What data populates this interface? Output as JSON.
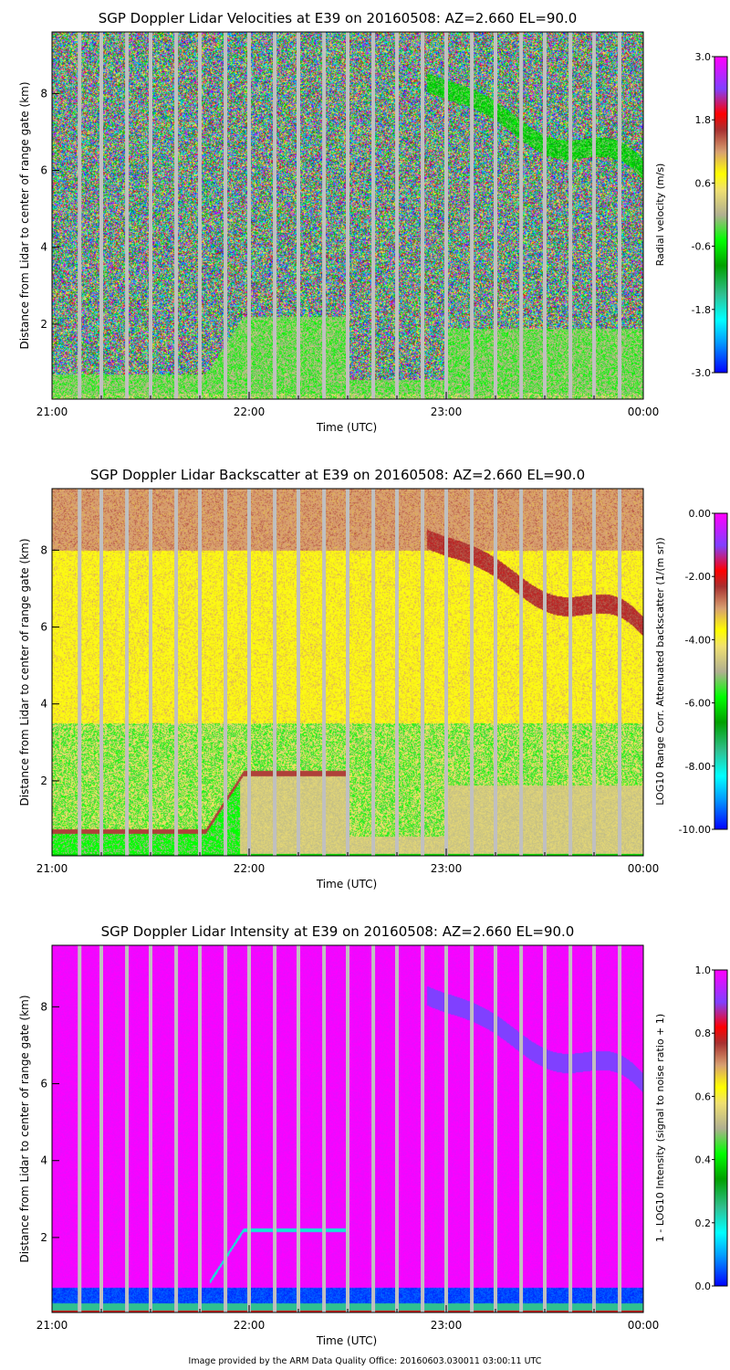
{
  "footer": "Image provided by the ARM Data Quality Office: 20160603.030011 03:00:11 UTC",
  "chart_data": [
    {
      "type": "heatmap",
      "title": "SGP Doppler Lidar Velocities at E39 on 20160508: AZ=2.660 EL=90.0",
      "xlabel": "Time (UTC)",
      "ylabel": "Distance from Lidar to center of range gate (km)",
      "x_ticks": [
        "21:00",
        "22:00",
        "23:00",
        "00:00"
      ],
      "xlim_hours": [
        21,
        24
      ],
      "y_ticks": [
        "2",
        "4",
        "6",
        "8"
      ],
      "ylim": [
        0.05,
        9.6
      ],
      "colorbar": {
        "label": "Radial velocity (m/s)",
        "ticks": [
          "3.0",
          "1.8",
          "0.6",
          "-0.6",
          "-1.8",
          "-3.0"
        ],
        "range": [
          -3.0,
          3.0
        ]
      },
      "field": "velocity"
    },
    {
      "type": "heatmap",
      "title": "SGP Doppler Lidar Backscatter at E39 on 20160508: AZ=2.660 EL=90.0",
      "xlabel": "Time (UTC)",
      "ylabel": "Distance from Lidar to center of range gate (km)",
      "x_ticks": [
        "21:00",
        "22:00",
        "23:00",
        "00:00"
      ],
      "xlim_hours": [
        21,
        24
      ],
      "y_ticks": [
        "2",
        "4",
        "6",
        "8"
      ],
      "ylim": [
        0.05,
        9.6
      ],
      "colorbar": {
        "label": "LOG10 Range Corr. Attenuated backscatter (1/(m sr))",
        "ticks": [
          "0.00",
          "-2.00",
          "-4.00",
          "-6.00",
          "-8.00",
          "-10.00"
        ],
        "range": [
          -10.0,
          0.0
        ]
      },
      "field": "backscatter"
    },
    {
      "type": "heatmap",
      "title": "SGP Doppler Lidar Intensity at E39 on 20160508: AZ=2.660 EL=90.0",
      "xlabel": "Time (UTC)",
      "ylabel": "Distance from Lidar to center of range gate (km)",
      "x_ticks": [
        "21:00",
        "22:00",
        "23:00",
        "00:00"
      ],
      "xlim_hours": [
        21,
        24
      ],
      "y_ticks": [
        "2",
        "4",
        "6",
        "8"
      ],
      "ylim": [
        0.05,
        9.6
      ],
      "colorbar": {
        "label": "1 - LOG10 Intensity (signal to noise ratio + 1)",
        "ticks": [
          "1.0",
          "0.8",
          "0.6",
          "0.4",
          "0.2",
          "0.0"
        ],
        "range": [
          0.0,
          1.0
        ]
      },
      "field": "intensity"
    }
  ],
  "gap_times_hours": [
    21.14,
    21.25,
    21.38,
    21.5,
    21.63,
    21.75,
    21.88,
    22.0,
    22.13,
    22.25,
    22.38,
    22.5,
    22.63,
    22.75,
    22.88,
    23.0,
    23.13,
    23.25,
    23.38,
    23.5,
    23.63,
    23.75,
    23.88
  ],
  "cloud_layer_km": {
    "start_hours": 22.9,
    "start_km": 8.3,
    "end_hours": 24.0,
    "end_km": 5.8
  }
}
